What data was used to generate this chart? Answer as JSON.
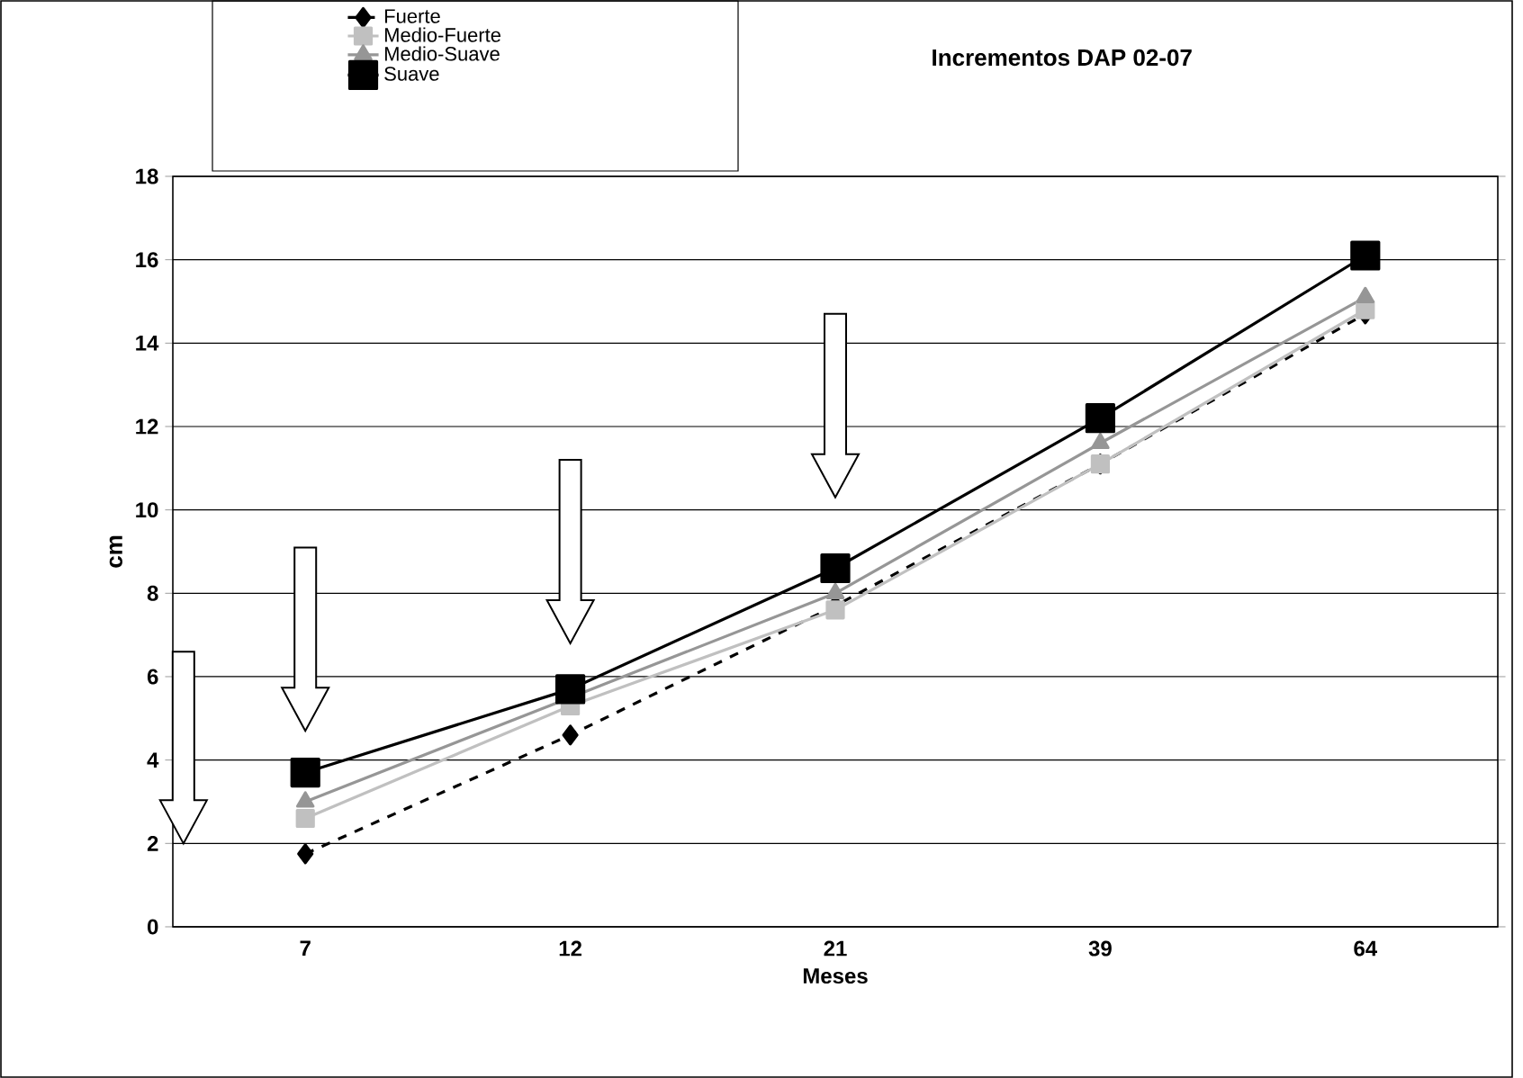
{
  "chart_data": {
    "type": "line",
    "title": "Incrementos DAP 02-07",
    "xlabel": "Meses",
    "ylabel": "cm",
    "categories": [
      "7",
      "12",
      "21",
      "39",
      "64"
    ],
    "series": [
      {
        "name": "Fuerte",
        "color": "#000000",
        "marker": "diamond",
        "line_style": "dashed",
        "values": [
          1.75,
          4.6,
          7.7,
          11.1,
          14.7
        ]
      },
      {
        "name": "Medio-Fuerte",
        "color": "#c0c0c0",
        "marker": "square",
        "line_style": "solid",
        "values": [
          2.6,
          5.3,
          7.6,
          11.1,
          14.8
        ]
      },
      {
        "name": "Medio-Suave",
        "color": "#969696",
        "marker": "triangle",
        "line_style": "solid",
        "values": [
          3.0,
          5.5,
          8.0,
          11.6,
          15.1
        ]
      },
      {
        "name": "Suave",
        "color": "#000000",
        "marker": "square",
        "line_style": "solid",
        "values": [
          3.7,
          5.7,
          8.6,
          12.2,
          16.1
        ]
      }
    ],
    "ylim": [
      0,
      18
    ],
    "yticks": [
      0,
      2,
      4,
      6,
      8,
      10,
      12,
      14,
      16,
      18
    ],
    "grid": "y",
    "legend": "top left"
  }
}
